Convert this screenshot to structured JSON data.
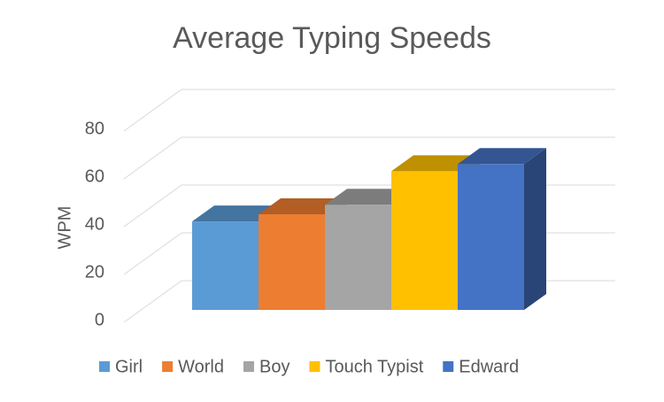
{
  "chart_data": {
    "type": "bar",
    "title": "Average Typing Speeds",
    "y_label": "WPM",
    "categories": [
      null
    ],
    "series": [
      {
        "name": "Girl",
        "color": "#5b9bd5",
        "values": [
          37
        ]
      },
      {
        "name": "World",
        "color": "#ed7d31",
        "values": [
          40
        ]
      },
      {
        "name": "Boy",
        "color": "#a5a5a5",
        "values": [
          44
        ]
      },
      {
        "name": "Touch Typist",
        "color": "#ffc000",
        "values": [
          58
        ]
      },
      {
        "name": "Edward",
        "color": "#4472c4",
        "values": [
          61
        ]
      }
    ],
    "ylim": [
      0,
      80
    ],
    "yticks": [
      0,
      20,
      40,
      60,
      80
    ],
    "grid": true,
    "legend": "bottom"
  }
}
